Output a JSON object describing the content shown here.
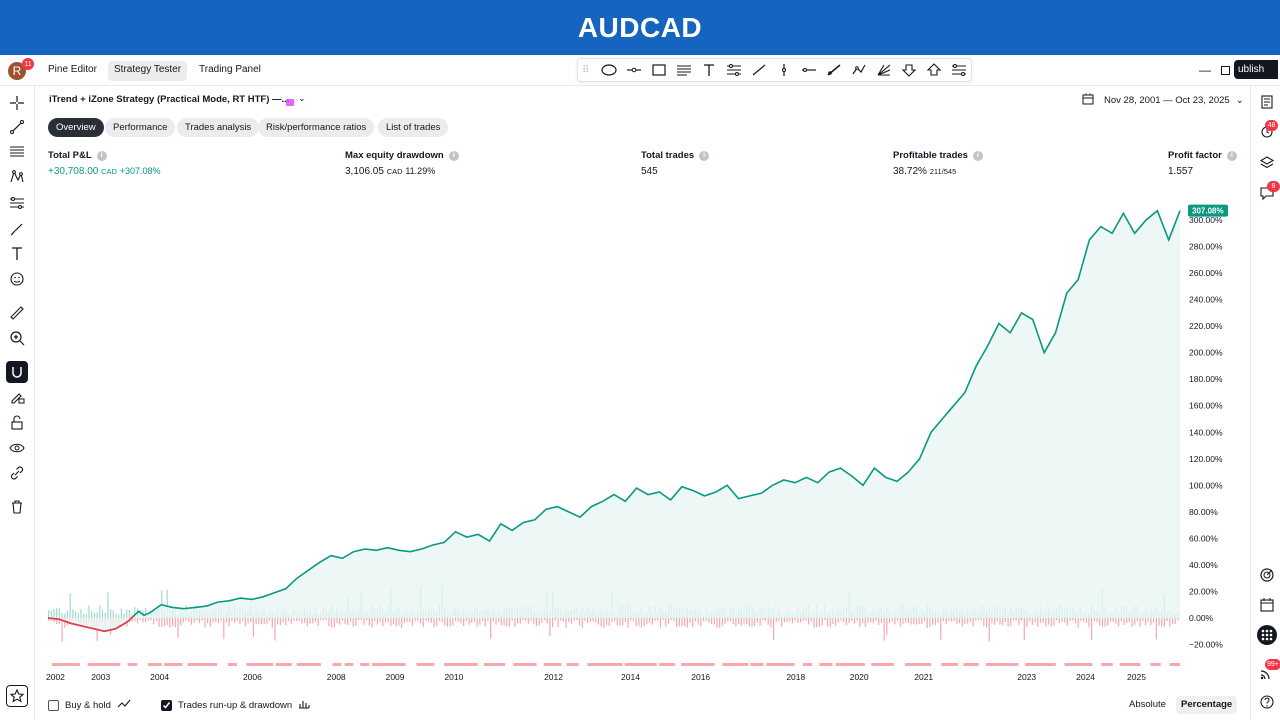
{
  "banner": {
    "title": "AUDCAD"
  },
  "topbar": {
    "avatar_letter": "R",
    "avatar_badge": "11",
    "tabs": [
      "Pine Editor",
      "Strategy Tester",
      "Trading Panel"
    ],
    "publish_label": "ublish"
  },
  "strategy": {
    "title": "iTrend + iZone Strategy (Practical Mode, RT HTF) —...",
    "date_range": "Nov 28, 2001 — Oct 23, 2025"
  },
  "panel_tabs": [
    "Overview",
    "Performance",
    "Trades analysis",
    "Risk/performance ratios",
    "List of trades"
  ],
  "metrics": {
    "total_pnl": {
      "label": "Total P&L",
      "value": "+30,708.00",
      "currency": "CAD",
      "pct": "+307.08%"
    },
    "max_drawdown": {
      "label": "Max equity drawdown",
      "value": "3,106.05",
      "currency": "CAD",
      "pct": "11.29%"
    },
    "total_trades": {
      "label": "Total trades",
      "value": "545"
    },
    "profitable_trades": {
      "label": "Profitable trades",
      "value": "38.72%",
      "sub": "211/545"
    },
    "profit_factor": {
      "label": "Profit factor",
      "value": "1.557"
    }
  },
  "right_badges": {
    "alerts": "48",
    "chat": "8",
    "notifications": "99+"
  },
  "bottom": {
    "buy_hold_label": "Buy & hold",
    "runup_label": "Trades run-up & drawdown",
    "absolute_label": "Absolute",
    "percentage_label": "Percentage"
  },
  "colors": {
    "equity_line": "#089981",
    "equity_fill": "#e8f5f2",
    "drawdown_line": "#f23645",
    "runup_bar": "#9fd8cc",
    "drawdown_bar": "#f7a7ad",
    "accent": "#1565c0"
  },
  "chart_data": {
    "type": "line",
    "current_value_label": "307.08%",
    "y_ticks": [
      "300.00%",
      "280.00%",
      "260.00%",
      "240.00%",
      "220.00%",
      "200.00%",
      "180.00%",
      "160.00%",
      "140.00%",
      "120.00%",
      "100.00%",
      "80.00%",
      "60.00%",
      "40.00%",
      "20.00%",
      "0.00%",
      "−20.00%"
    ],
    "ylim": [
      -20,
      300
    ],
    "x_ticks": [
      "2002",
      "2003",
      "2004",
      "2006",
      "2008",
      "2009",
      "2010",
      "2012",
      "2014",
      "2016",
      "2018",
      "2020",
      "2021",
      "2023",
      "2024",
      "2025"
    ],
    "x_tick_years": [
      2002.0,
      2003.0,
      2004.0,
      2006.0,
      2008.0,
      2009.0,
      2010.0,
      2012.0,
      2014.0,
      2016.0,
      2018.0,
      2020.0,
      2021.0,
      2023.0,
      2024.0,
      2025.0
    ],
    "x_tick_pos": [
      0,
      0.04,
      0.092,
      0.174,
      0.248,
      0.3,
      0.352,
      0.44,
      0.508,
      0.57,
      0.654,
      0.71,
      0.767,
      0.858,
      0.91,
      0.955
    ],
    "xlim_pos": [
      0,
      1
    ],
    "series": [
      {
        "name": "Equity",
        "x": [
          0,
          0.01,
          0.02,
          0.03,
          0.04,
          0.05,
          0.06,
          0.07,
          0.075,
          0.08,
          0.085,
          0.09,
          0.1,
          0.11,
          0.12,
          0.13,
          0.14,
          0.15,
          0.16,
          0.17,
          0.18,
          0.19,
          0.2,
          0.21,
          0.22,
          0.23,
          0.24,
          0.25,
          0.26,
          0.27,
          0.28,
          0.29,
          0.3,
          0.31,
          0.32,
          0.33,
          0.34,
          0.35,
          0.36,
          0.37,
          0.38,
          0.39,
          0.4,
          0.41,
          0.42,
          0.43,
          0.44,
          0.45,
          0.46,
          0.47,
          0.48,
          0.49,
          0.5,
          0.51,
          0.52,
          0.53,
          0.54,
          0.55,
          0.56,
          0.57,
          0.58,
          0.59,
          0.6,
          0.61,
          0.62,
          0.63,
          0.64,
          0.65,
          0.66,
          0.67,
          0.68,
          0.69,
          0.7,
          0.71,
          0.72,
          0.73,
          0.74,
          0.75,
          0.76,
          0.77,
          0.78,
          0.79,
          0.8,
          0.81,
          0.82,
          0.83,
          0.84,
          0.85,
          0.86,
          0.87,
          0.88,
          0.89,
          0.9,
          0.91,
          0.92,
          0.93,
          0.94,
          0.95,
          0.96,
          0.97,
          0.98,
          0.99,
          1.0
        ],
        "y": [
          0,
          -1,
          -4,
          -6,
          -8,
          -10,
          -8,
          -3,
          1,
          5,
          2,
          4,
          10,
          8,
          7,
          8,
          9,
          12,
          13,
          15,
          14,
          16,
          19,
          22,
          30,
          36,
          42,
          47,
          45,
          50,
          52,
          51,
          53,
          51,
          50,
          52,
          55,
          57,
          65,
          61,
          63,
          58,
          71,
          66,
          72,
          74,
          82,
          84,
          80,
          76,
          84,
          88,
          93,
          88,
          98,
          93,
          95,
          89,
          99,
          96,
          92,
          95,
          100,
          90,
          92,
          94,
          100,
          104,
          102,
          106,
          102,
          110,
          113,
          107,
          100,
          113,
          106,
          103,
          110,
          120,
          140,
          150,
          160,
          170,
          190,
          205,
          222,
          215,
          230,
          225,
          200,
          215,
          245,
          255,
          285,
          295,
          290,
          305,
          290,
          300,
          307,
          285,
          307
        ]
      }
    ]
  }
}
